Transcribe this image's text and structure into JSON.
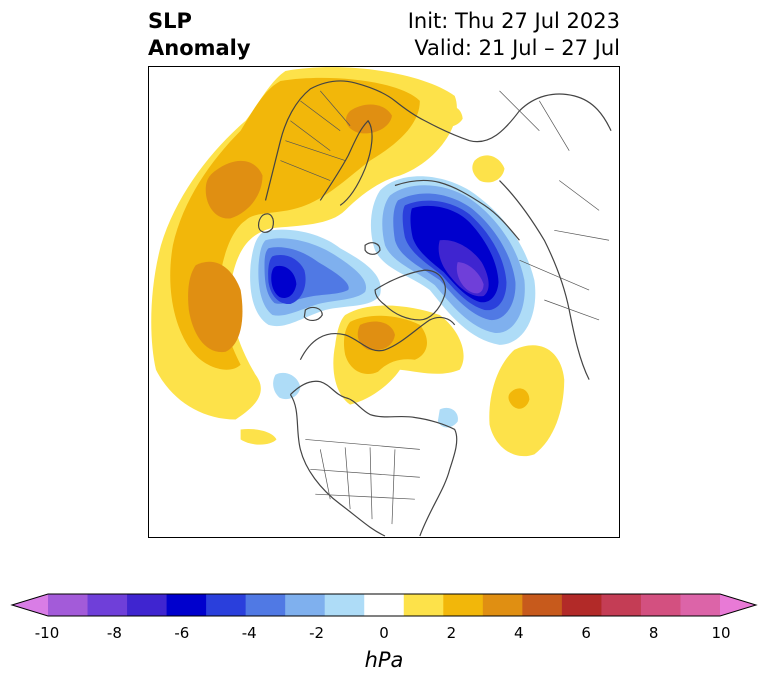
{
  "header": {
    "title_line1": "SLP",
    "title_line2": "Anomaly",
    "init_text": "Init: Thu 27 Jul 2023",
    "valid_text": "Valid: 21 Jul – 27 Jul"
  },
  "colorbar": {
    "units": "hPa",
    "min": -10,
    "max": 10,
    "extend": "both",
    "tick_labels": [
      "-10",
      "-8",
      "-6",
      "-4",
      "-2",
      "0",
      "2",
      "4",
      "6",
      "8",
      "10"
    ],
    "colors": [
      "#d97de6",
      "#a35bd9",
      "#6f3fd9",
      "#3f25d0",
      "#0000cd",
      "#2a3fdc",
      "#5079e4",
      "#7fb0ee",
      "#aedcf7",
      "#ffffff",
      "#fde24a",
      "#f2b70a",
      "#e08f12",
      "#c75a1c",
      "#b22a28",
      "#c43d55",
      "#d35080",
      "#dc64a8",
      "#e87ad6"
    ]
  },
  "map": {
    "projection": "north-polar-stereographic",
    "field": "SLP anomaly (hPa)",
    "colors": {
      "neg_light": "#aedcf7",
      "neg_1": "#7fb0ee",
      "neg_2": "#5079e4",
      "neg_3": "#2a3fdc",
      "neg_4": "#0000cd",
      "neg_5": "#3f25d0",
      "neg_6": "#6f3fd9",
      "pos_1": "#fde24a",
      "pos_2": "#f2b70a",
      "pos_3": "#e08f12",
      "coast": "#444444"
    }
  }
}
